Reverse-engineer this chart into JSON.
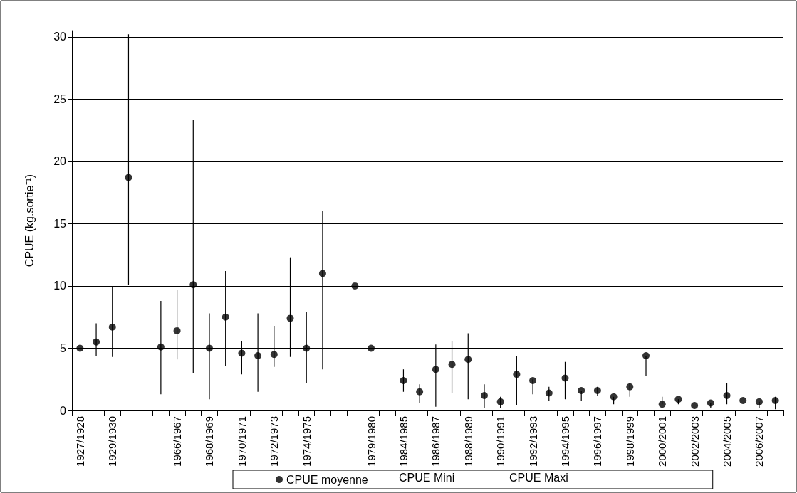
{
  "chart_data": {
    "type": "scatter",
    "ylabel": "CPUE (kg.sortie⁻¹)",
    "categories": [
      "1927/1928",
      null,
      "1929/1930",
      null,
      null,
      null,
      "1966/1967",
      null,
      "1968/1969",
      null,
      "1970/1971",
      null,
      "1972/1973",
      null,
      "1974/1975",
      null,
      null,
      null,
      "1979/1980",
      null,
      "1984/1985",
      null,
      "1986/1987",
      null,
      "1988/1989",
      null,
      "1990/1991",
      null,
      "1992/1993",
      null,
      "1994/1995",
      null,
      "1996/1997",
      null,
      "1998/1999",
      null,
      "2000/2001",
      null,
      "2002/2003",
      null,
      "2004/2005",
      null,
      "2006/2007",
      null
    ],
    "series": [
      {
        "name": "CPUE moyenne",
        "color": "#000000",
        "marker": "circle",
        "values": [
          5.0,
          5.5,
          6.7,
          18.7,
          null,
          5.1,
          6.4,
          10.1,
          5.0,
          7.5,
          4.6,
          4.4,
          4.5,
          7.4,
          5.0,
          11.0,
          null,
          10.0,
          5.0,
          null,
          2.4,
          1.5,
          3.3,
          3.7,
          4.1,
          1.2,
          0.7,
          2.9,
          2.4,
          1.4,
          2.6,
          1.6,
          1.6,
          1.1,
          1.9,
          4.4,
          0.5,
          0.9,
          0.4,
          0.6,
          1.2,
          0.8,
          0.7,
          0.8
        ],
        "errors": [
          null,
          [
            4.4,
            7.0
          ],
          [
            4.3,
            9.9
          ],
          [
            10.1,
            30.2
          ],
          null,
          [
            1.3,
            8.8
          ],
          [
            4.1,
            9.7
          ],
          [
            3.0,
            23.3
          ],
          [
            0.9,
            7.8
          ],
          [
            3.6,
            11.2
          ],
          [
            2.9,
            5.6
          ],
          [
            1.5,
            7.8
          ],
          [
            3.5,
            6.8
          ],
          [
            4.3,
            12.3
          ],
          [
            2.2,
            7.9
          ],
          [
            3.3,
            16.0
          ],
          null,
          null,
          null,
          null,
          [
            1.5,
            3.3
          ],
          [
            0.6,
            2.1
          ],
          [
            0.3,
            5.3
          ],
          [
            1.4,
            5.6
          ],
          [
            0.9,
            6.2
          ],
          [
            0.2,
            2.1
          ],
          [
            0.2,
            1.1
          ],
          [
            0.4,
            4.4
          ],
          [
            1.3,
            2.5
          ],
          [
            0.8,
            1.9
          ],
          [
            0.9,
            3.9
          ],
          [
            0.8,
            1.6
          ],
          [
            1.2,
            1.9
          ],
          [
            0.5,
            1.1
          ],
          [
            1.1,
            2.2
          ],
          [
            2.8,
            4.4
          ],
          [
            0.5,
            1.1
          ],
          [
            0.5,
            0.9
          ],
          null,
          [
            0.2,
            0.6
          ],
          [
            0.5,
            2.2
          ],
          null,
          [
            0.2,
            0.7
          ],
          [
            0.1,
            1.1
          ]
        ]
      }
    ],
    "annotations": [
      "CPUE Mini",
      "CPUE Maxi"
    ],
    "ylim": [
      0,
      30.5
    ],
    "yticks": [
      0,
      5,
      10,
      15,
      20,
      25,
      30
    ],
    "grid": "y",
    "legend": "bottom"
  }
}
